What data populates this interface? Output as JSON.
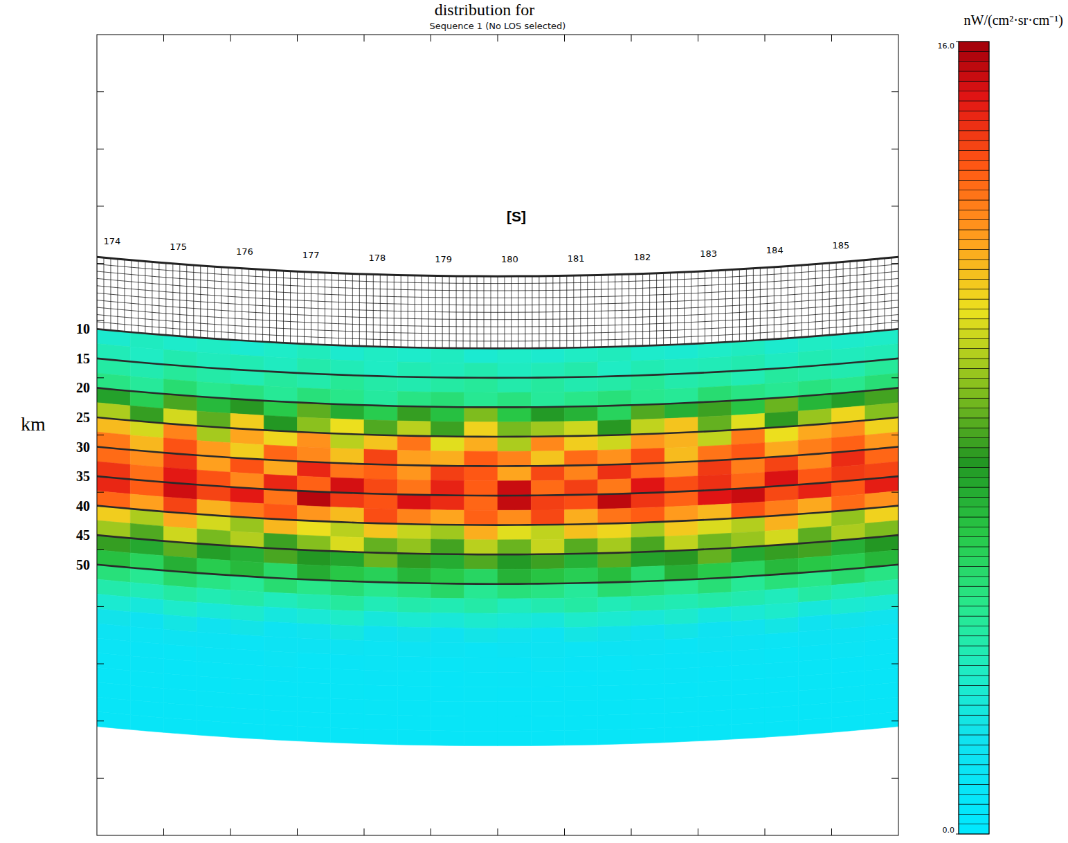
{
  "chart_data": {
    "type": "heatmap",
    "title": "distribution for",
    "subtitle": "Sequence 1 (No LOS selected)",
    "annotation": "[S]",
    "y_label": "km",
    "ylim": [
      -40,
      96
    ],
    "yticks": [
      10,
      15,
      20,
      25,
      30,
      35,
      40,
      45,
      50
    ],
    "sequence_band": [
      -2.25,
      10
    ],
    "sequence_labels": [
      174,
      175,
      176,
      177,
      178,
      179,
      180,
      181,
      182,
      183,
      184,
      185
    ],
    "row_edges": [
      10,
      12.5,
      15,
      17.5,
      20,
      22.5,
      25,
      27.5,
      30,
      32.5,
      35,
      37.5,
      40,
      42.5,
      45,
      47.5,
      50,
      52.5,
      55,
      57.5,
      60,
      62.5,
      65,
      67.5,
      70,
      72.5,
      75,
      77.5
    ],
    "cells": [
      [
        3.0,
        3.4,
        3.1,
        3.3,
        2.9,
        3.2,
        3.5,
        3.0,
        3.3,
        3.1,
        3.4,
        2.9,
        3.2,
        3.0,
        3.3,
        3.5,
        3.1,
        2.9,
        3.2,
        3.4,
        3.0,
        3.3,
        3.1,
        3.2
      ],
      [
        3.6,
        3.3,
        3.8,
        3.5,
        3.7,
        3.4,
        3.9,
        3.6,
        3.3,
        3.7,
        3.5,
        3.8,
        3.4,
        3.6,
        3.9,
        3.3,
        3.7,
        3.5,
        3.6,
        3.8,
        3.4,
        3.7,
        3.5,
        3.6
      ],
      [
        4.1,
        3.8,
        4.3,
        4.0,
        3.7,
        4.2,
        3.9,
        4.4,
        4.0,
        3.8,
        4.1,
        4.3,
        3.9,
        4.2,
        3.8,
        4.0,
        4.4,
        3.9,
        4.1,
        3.7,
        4.2,
        4.0,
        3.8,
        4.3
      ],
      [
        4.8,
        4.3,
        5.2,
        4.6,
        4.9,
        4.4,
        5.0,
        4.7,
        4.2,
        4.8,
        5.1,
        4.5,
        4.9,
        4.3,
        4.7,
        5.0,
        4.6,
        4.4,
        5.2,
        4.8,
        4.5,
        4.9,
        4.6,
        5.1
      ],
      [
        7.2,
        5.8,
        8.1,
        6.5,
        7.6,
        6.0,
        8.4,
        6.9,
        5.9,
        7.8,
        6.3,
        8.9,
        6.1,
        7.4,
        6.7,
        5.6,
        8.2,
        6.8,
        7.9,
        6.2,
        8.6,
        6.6,
        7.3,
        8.0
      ],
      [
        9.6,
        7.8,
        10.2,
        8.4,
        11.0,
        7.5,
        9.1,
        10.6,
        8.2,
        9.8,
        7.9,
        10.9,
        8.8,
        9.4,
        10.1,
        7.6,
        9.9,
        11.2,
        8.5,
        10.4,
        7.7,
        9.3,
        10.8,
        9.0
      ],
      [
        11.4,
        10.2,
        12.6,
        9.5,
        11.9,
        10.8,
        12.3,
        9.8,
        11.2,
        12.9,
        10.4,
        11.7,
        9.6,
        12.5,
        11.0,
        10.1,
        12.2,
        11.6,
        9.9,
        12.8,
        10.6,
        11.8,
        12.4,
        10.9
      ],
      [
        12.8,
        11.5,
        13.6,
        12.1,
        11.0,
        13.2,
        12.5,
        11.3,
        13.9,
        12.0,
        11.7,
        13.4,
        12.6,
        11.2,
        13.1,
        12.3,
        13.7,
        11.4,
        12.9,
        13.5,
        11.8,
        12.7,
        13.3,
        12.2
      ],
      [
        13.1,
        12.4,
        14.2,
        12.0,
        13.6,
        11.8,
        14.5,
        12.9,
        13.3,
        12.2,
        14.0,
        13.5,
        11.9,
        13.8,
        12.6,
        14.3,
        13.0,
        12.3,
        14.1,
        12.7,
        13.9,
        12.5,
        14.4,
        13.2
      ],
      [
        14.2,
        13.0,
        14.8,
        13.6,
        12.5,
        14.5,
        13.3,
        15.1,
        13.8,
        12.9,
        14.6,
        13.4,
        15.3,
        13.1,
        14.0,
        12.8,
        14.9,
        13.7,
        14.3,
        13.2,
        15.0,
        13.5,
        14.1,
        13.9
      ],
      [
        14.5,
        13.4,
        15.2,
        13.9,
        14.8,
        12.9,
        15.6,
        14.1,
        13.6,
        15.0,
        14.4,
        13.2,
        15.4,
        14.0,
        13.7,
        15.5,
        14.2,
        13.3,
        14.9,
        15.3,
        13.8,
        14.6,
        13.5,
        14.7
      ],
      [
        13.2,
        12.0,
        13.9,
        11.6,
        12.8,
        13.5,
        12.2,
        11.4,
        13.7,
        12.6,
        11.9,
        13.3,
        12.4,
        13.8,
        11.7,
        12.9,
        13.4,
        12.1,
        11.5,
        13.6,
        12.7,
        11.8,
        13.1,
        12.3
      ],
      [
        11.0,
        9.6,
        11.8,
        10.2,
        9.3,
        11.5,
        10.6,
        9.8,
        11.2,
        10.0,
        9.4,
        11.7,
        10.4,
        9.9,
        11.3,
        10.8,
        9.5,
        11.1,
        10.3,
        9.7,
        11.6,
        10.1,
        9.2,
        10.9
      ],
      [
        9.4,
        8.2,
        10.1,
        8.8,
        9.7,
        7.9,
        9.0,
        10.3,
        8.5,
        9.2,
        8.0,
        9.8,
        8.6,
        10.0,
        8.3,
        9.5,
        8.1,
        9.9,
        8.7,
        9.3,
        10.2,
        8.4,
        9.6,
        8.9
      ],
      [
        7.8,
        7.0,
        8.4,
        7.3,
        6.8,
        8.1,
        7.5,
        7.1,
        8.6,
        7.7,
        6.9,
        8.2,
        7.4,
        7.9,
        6.7,
        8.3,
        7.2,
        7.6,
        8.5,
        7.0,
        7.8,
        8.0,
        6.8,
        7.5
      ],
      [
        6.3,
        5.6,
        6.8,
        5.9,
        6.5,
        5.4,
        6.9,
        6.1,
        5.7,
        6.6,
        6.0,
        5.5,
        6.7,
        6.2,
        5.8,
        6.4,
        5.3,
        6.8,
        6.0,
        5.6,
        6.5,
        6.1,
        5.9,
        6.6
      ],
      [
        5.0,
        4.5,
        5.3,
        4.8,
        4.4,
        5.2,
        4.7,
        5.1,
        4.6,
        4.9,
        5.4,
        4.5,
        5.0,
        4.8,
        4.3,
        5.2,
        4.9,
        4.6,
        5.1,
        4.4,
        5.0,
        4.7,
        5.3,
        4.8
      ],
      [
        3.9,
        3.6,
        4.1,
        3.7,
        4.0,
        3.5,
        3.8,
        4.2,
        3.6,
        3.9,
        3.7,
        4.0,
        3.5,
        3.8,
        4.1,
        3.6,
        3.9,
        3.7,
        4.0,
        3.8,
        3.5,
        4.1,
        3.7,
        3.9
      ],
      [
        2.9,
        2.6,
        3.1,
        2.7,
        3.0,
        2.5,
        2.8,
        3.2,
        2.6,
        2.9,
        2.7,
        3.0,
        2.8,
        2.6,
        3.1,
        2.9,
        2.7,
        3.0,
        2.5,
        2.8,
        3.1,
        2.6,
        2.9,
        2.8
      ],
      [
        2.1,
        1.8,
        2.3,
        1.9,
        2.2,
        1.7,
        2.0,
        2.4,
        1.9,
        2.1,
        1.8,
        2.2,
        2.0,
        1.7,
        2.3,
        2.1,
        1.9,
        2.2,
        1.8,
        2.0,
        2.3,
        1.9,
        2.1,
        2.0
      ],
      [
        1.6,
        1.4,
        1.7,
        1.5,
        1.3,
        1.6,
        1.5,
        1.7,
        1.4,
        1.5,
        1.6,
        1.3,
        1.5,
        1.7,
        1.4,
        1.6,
        1.5,
        1.3,
        1.7,
        1.5,
        1.4,
        1.6,
        1.5,
        1.4
      ],
      [
        1.3,
        1.2,
        1.1,
        1.3,
        1.2,
        1.4,
        1.1,
        1.2,
        1.3,
        1.2,
        1.1,
        1.3,
        1.2,
        1.4,
        1.2,
        1.1,
        1.3,
        1.2,
        1.2,
        1.3,
        1.1,
        1.2,
        1.4,
        1.2
      ],
      [
        1.1,
        1.2,
        1.0,
        1.1,
        1.1,
        1.2,
        1.0,
        1.1,
        1.2,
        1.1,
        1.0,
        1.1,
        1.2,
        1.1,
        1.0,
        1.1,
        1.1,
        1.2,
        1.0,
        1.1,
        1.2,
        1.1,
        1.0,
        1.1
      ],
      [
        1.0,
        1.1,
        1.0,
        1.0,
        1.1,
        1.0,
        1.0,
        1.1,
        1.0,
        1.0,
        1.0,
        1.1,
        1.0,
        1.0,
        1.1,
        1.0,
        1.0,
        1.0,
        1.1,
        1.0,
        1.0,
        1.1,
        1.0,
        1.0
      ],
      [
        1.0,
        1.0,
        1.0,
        1.1,
        1.0,
        1.0,
        1.0,
        1.0,
        1.1,
        1.0,
        1.0,
        1.0,
        1.0,
        1.1,
        1.0,
        1.0,
        1.0,
        1.1,
        1.0,
        1.0,
        1.0,
        1.0,
        1.1,
        1.0
      ],
      [
        1.0,
        1.0,
        1.0,
        1.0,
        1.0,
        1.0,
        1.0,
        1.0,
        1.0,
        1.0,
        1.0,
        1.0,
        1.0,
        1.0,
        1.0,
        1.0,
        1.0,
        1.0,
        1.0,
        1.0,
        1.0,
        1.0,
        1.0,
        1.0
      ],
      [
        1.0,
        1.0,
        1.0,
        1.0,
        1.0,
        1.0,
        1.0,
        1.0,
        1.0,
        1.0,
        1.0,
        1.0,
        1.0,
        1.0,
        1.0,
        1.0,
        1.0,
        1.0,
        1.0,
        1.0,
        1.0,
        1.0,
        1.0,
        1.0
      ]
    ],
    "colorbar": {
      "label": "nW/(cm²·sr·cm⁻¹)",
      "range": [
        0,
        16
      ],
      "ticks": [
        {
          "value": 0,
          "label": "0.0"
        },
        {
          "value": 16,
          "label": "16.0"
        }
      ]
    },
    "tick_labels": false
  }
}
